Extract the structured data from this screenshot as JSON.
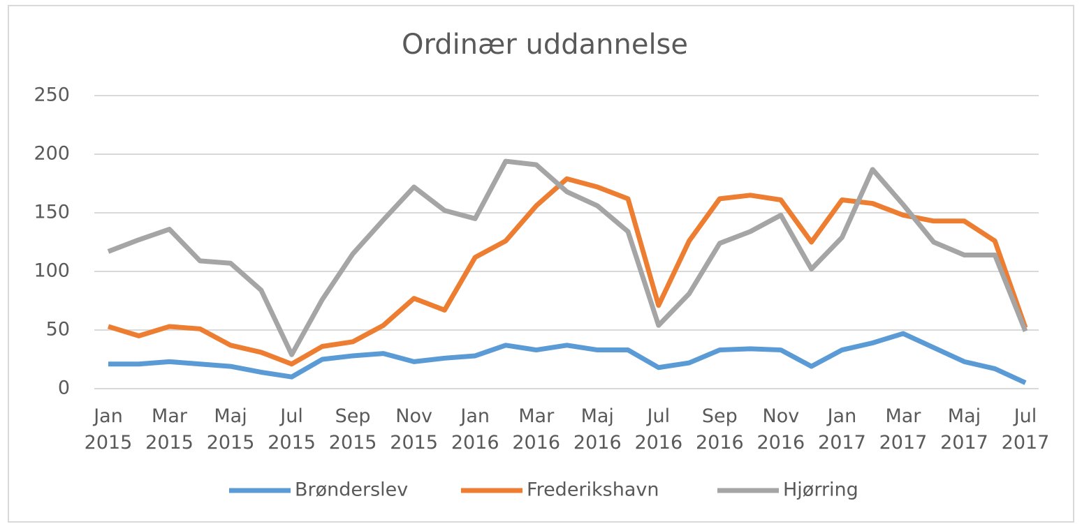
{
  "chart_data": {
    "type": "line",
    "title": "Ordinær uddannelse",
    "categories": [
      "Jan 2015",
      null,
      "Mar 2015",
      null,
      "Maj 2015",
      null,
      "Jul 2015",
      null,
      "Sep 2015",
      null,
      "Nov 2015",
      null,
      "Jan 2016",
      null,
      "Mar 2016",
      null,
      "Maj 2016",
      null,
      "Jul 2016",
      null,
      "Sep 2016",
      null,
      "Nov 2016",
      null,
      "Jan 2017",
      null,
      "Mar 2017",
      null,
      "Maj 2017",
      null,
      "Jul 2017"
    ],
    "series": [
      {
        "name": "Brønderslev",
        "color": "#5b9bd5",
        "values": [
          21,
          21,
          23,
          21,
          19,
          14,
          10,
          25,
          28,
          30,
          23,
          26,
          28,
          37,
          33,
          37,
          33,
          33,
          18,
          22,
          33,
          34,
          33,
          19,
          33,
          39,
          47,
          35,
          23,
          17,
          5
        ]
      },
      {
        "name": "Frederikshavn",
        "color": "#ed7d31",
        "values": [
          53,
          45,
          53,
          51,
          37,
          31,
          21,
          36,
          40,
          54,
          77,
          67,
          112,
          126,
          156,
          179,
          172,
          162,
          71,
          126,
          162,
          165,
          161,
          125,
          161,
          158,
          148,
          143,
          143,
          126,
          52
        ]
      },
      {
        "name": "Hjørring",
        "color": "#a5a5a5",
        "values": [
          117,
          127,
          136,
          109,
          107,
          84,
          29,
          76,
          115,
          144,
          172,
          152,
          145,
          194,
          191,
          168,
          156,
          134,
          54,
          81,
          124,
          134,
          148,
          102,
          129,
          187,
          157,
          125,
          114,
          114,
          49
        ]
      }
    ],
    "ylim": [
      0,
      250
    ],
    "yticks": [
      0,
      50,
      100,
      150,
      200,
      250
    ],
    "grid": true,
    "legend": "bottom"
  }
}
